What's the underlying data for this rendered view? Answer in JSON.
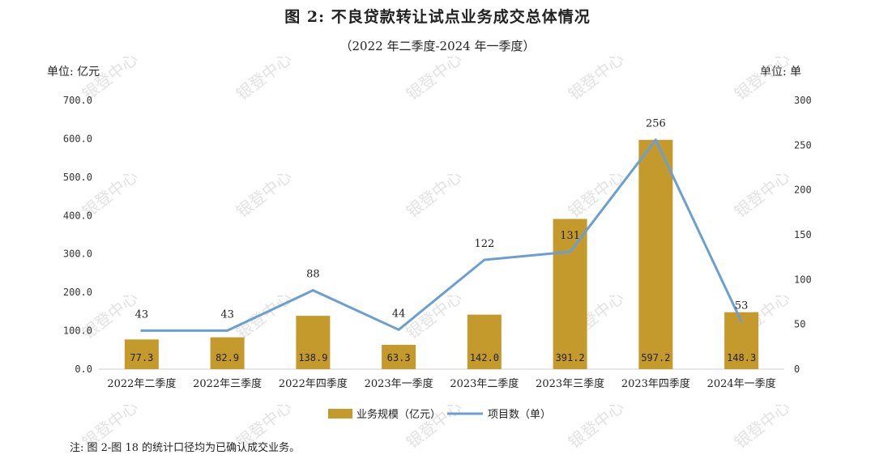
{
  "title": "图 2:  不良贷款转让试点业务成交总体情况",
  "subtitle": "（2022 年二季度-2024 年一季度）",
  "unit_left": "单位:  亿元",
  "unit_right": "单位:  单",
  "note": "注:  图 2-图 18 的统计口径均为已确认成交业务。",
  "watermark": "银登中心",
  "colors": {
    "bar": "#C49A2C",
    "line": "#6A9FD0"
  },
  "chart_data": {
    "type": "bar",
    "categories": [
      "2022年二季度",
      "2022年三季度",
      "2022年四季度",
      "2023年一季度",
      "2023年二季度",
      "2023年三季度",
      "2023年四季度",
      "2024年一季度"
    ],
    "series": [
      {
        "name": "业务规模（亿元）",
        "type": "bar",
        "axis": "left",
        "values": [
          77.3,
          82.9,
          138.9,
          63.3,
          142.0,
          391.2,
          597.2,
          148.3
        ],
        "labels": [
          "77.3",
          "82.9",
          "138.9",
          "63.3",
          "142.0",
          "391.2",
          "597.2",
          "148.3"
        ]
      },
      {
        "name": "项目数（单）",
        "type": "line",
        "axis": "right",
        "values": [
          43,
          43,
          88,
          44,
          122,
          131,
          256,
          53
        ],
        "labels": [
          "43",
          "43",
          "88",
          "44",
          "122",
          "131",
          "256",
          "53"
        ]
      }
    ],
    "y_left": {
      "min": 0,
      "max": 700,
      "ticks": [
        "0.0",
        "100.0",
        "200.0",
        "300.0",
        "400.0",
        "500.0",
        "600.0",
        "700.0"
      ]
    },
    "y_right": {
      "min": 0,
      "max": 300,
      "ticks": [
        "0",
        "50",
        "100",
        "150",
        "200",
        "250",
        "300"
      ]
    },
    "legend_position": "bottom",
    "grid": false
  }
}
